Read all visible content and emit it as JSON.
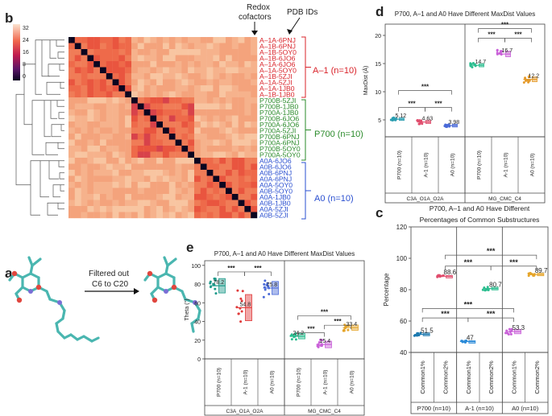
{
  "panel_letters": {
    "b": "b",
    "a": "a",
    "d": "d",
    "e": "e",
    "c": "c"
  },
  "panel_b": {
    "colorbar_ticks": [
      "32",
      "24",
      "16",
      "8",
      "0"
    ],
    "header_redox": [
      "Redox",
      "cofactors"
    ],
    "header_pdb": "PDB IDs",
    "a_minus1_labels": [
      "A–1A-6PNJ",
      "A–1B-6PNJ",
      "A–1B-5OY0",
      "A–1B-6JO6",
      "A–1A-6JO6",
      "A–1A-5OY0",
      "A–1B-5ZJI",
      "A–1A-5ZJI",
      "A–1A-1JB0",
      "A–1B-1JB0"
    ],
    "p700_labels": [
      "P700B-5ZJI",
      "P700B-1JB0",
      "P700A-1JB0",
      "P700B-6JO6",
      "P700A-6JO6",
      "P700A-5ZJI",
      "P700B-6PNJ",
      "P700A-6PNJ",
      "P700B-5OY0",
      "P700A-5OY0"
    ],
    "a0_labels": [
      "A0A-6JO6",
      "A0B-6JO6",
      "A0B-6PNJ",
      "A0A-6PNJ",
      "A0A-5OY0",
      "A0B-5OY0",
      "A0A-1JB0",
      "A0B-1JB0",
      "A0A-5ZJI",
      "A0B-5ZJI"
    ],
    "group_a_minus1": "A–1 (n=10)",
    "group_p700": "P700 (n=10)",
    "group_a0": "A0 (n=10)",
    "colors": {
      "a_minus1": "#d9232a",
      "p700": "#2a8a2a",
      "a0": "#2a4fd0"
    }
  },
  "panel_a": {
    "arrow_text": [
      "Filtered out",
      "C6 to C20"
    ]
  },
  "chart_data": [
    {
      "id": "d",
      "type": "box+strip",
      "title": "P700, A–1 and A0 Have Different MaxDist Values",
      "ylabel": "MaxDist (Å)",
      "ylim": [
        2,
        22
      ],
      "yticks": [
        "5",
        "10",
        "15",
        "20"
      ],
      "groups": [
        "C3A_O1A_O2A",
        "MG_CMC_C4"
      ],
      "categories": [
        "P700 (n=10)",
        "A-1 (n=10)",
        "A0 (n=10)",
        "P700 (n=10)",
        "A-1 (n=10)",
        "A0 (n=10)"
      ],
      "means": [
        5.12,
        4.63,
        3.98,
        14.7,
        16.7,
        12.2
      ],
      "mean_labels": [
        "5.12",
        "4.63",
        "3.98",
        "14.7",
        "16.7",
        "12.2"
      ],
      "significance": "***"
    },
    {
      "id": "e",
      "type": "box+strip",
      "title": "P700, A–1 and A0 Have Different MaxDist Values",
      "ylabel": "Theta (°)",
      "ylim": [
        0,
        105
      ],
      "yticks": [
        "0",
        "20",
        "40",
        "60",
        "80",
        "100"
      ],
      "groups": [
        "C3A_O1A_O2A",
        "MG_CMC_C4"
      ],
      "categories": [
        "P700 (n=10)",
        "A-1 (n=10)",
        "A0 (n=10)",
        "P700 (n=10)",
        "A-1 (n=10)",
        "A0 (n=10)"
      ],
      "means": [
        78.2,
        54.8,
        75.8,
        24.2,
        15.4,
        33.4
      ],
      "mean_labels": [
        "78.2",
        "54.8",
        "75.8",
        "24.2",
        "15.4",
        "33.4"
      ],
      "significance": "***"
    },
    {
      "id": "c",
      "type": "box+strip",
      "title": [
        "P700, A–1 and A0 Have Different",
        "Percentages of Common Substructures"
      ],
      "ylabel": "Percentage",
      "ylim": [
        40,
        120
      ],
      "yticks": [
        "40",
        "60",
        "80",
        "100",
        "120"
      ],
      "groups": [
        "P700 (n=10)",
        "A-1 (n=10)",
        "A0 (n=10)"
      ],
      "categories": [
        "Common1%",
        "Common2%",
        "Common1%",
        "Common2%",
        "Common1%",
        "Common2%"
      ],
      "means": [
        51.5,
        88.6,
        47,
        80.7,
        53.3,
        89.7
      ],
      "mean_labels": [
        "51.5",
        "88.6",
        "47",
        "80.7",
        "53.3",
        "89.7"
      ],
      "significance": "***"
    }
  ]
}
